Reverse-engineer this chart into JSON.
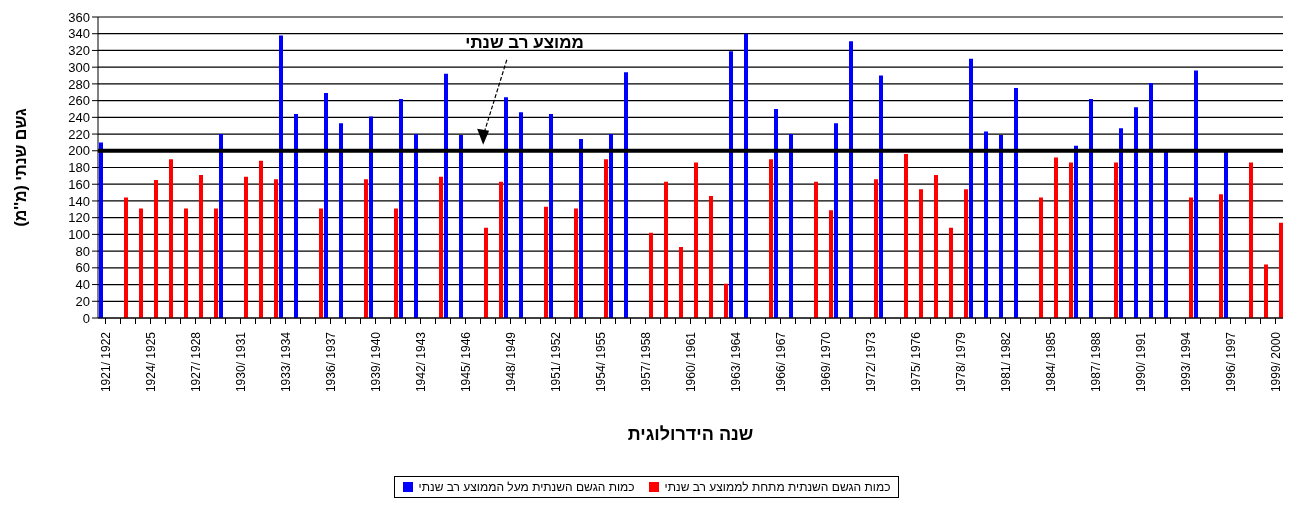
{
  "chart_data": {
    "type": "bar",
    "xlabel": "שנה הידרולוגית",
    "ylabel": "גשם שנתי (מ''מ)",
    "categories": [
      "1921/ 1922",
      null,
      null,
      "1924/ 1925",
      null,
      null,
      "1927/ 1928",
      null,
      null,
      "1930/ 1931",
      null,
      null,
      "1933/ 1934",
      null,
      null,
      "1936/ 1937",
      null,
      null,
      "1939/ 1940",
      null,
      null,
      "1942/ 1943",
      null,
      null,
      "1945/ 1946",
      null,
      null,
      "1948/ 1949",
      null,
      null,
      "1951/ 1952",
      null,
      null,
      "1954/ 1955",
      null,
      null,
      "1957/ 1958",
      null,
      null,
      "1960/ 1961",
      null,
      null,
      "1963/ 1964",
      null,
      null,
      "1966/ 1967",
      null,
      null,
      "1969/ 1970",
      null,
      null,
      "1972/ 1973",
      null,
      null,
      "1975/ 1976",
      null,
      null,
      "1978/ 1979",
      null,
      null,
      "1981/ 1982",
      null,
      null,
      "1984/ 1985",
      null,
      null,
      "1987/ 1988",
      null,
      null,
      "1990/ 1991",
      null,
      null,
      "1993/ 1994",
      null,
      null,
      "1996/ 1997",
      null,
      null,
      "1999/ 2000"
    ],
    "series": [
      {
        "name": "כמות הגשם השנתית מעל הממוצע רב שנתי",
        "color": "#0000ff",
        "values": [
          210,
          null,
          null,
          null,
          null,
          null,
          null,
          null,
          220,
          null,
          null,
          null,
          338,
          244,
          null,
          269,
          233,
          null,
          241,
          null,
          262,
          220,
          null,
          292,
          219,
          null,
          null,
          264,
          246,
          null,
          244,
          null,
          214,
          null,
          220,
          294,
          null,
          null,
          null,
          null,
          null,
          null,
          319,
          340,
          null,
          250,
          220,
          null,
          null,
          233,
          331,
          null,
          290,
          null,
          null,
          null,
          null,
          null,
          310,
          223,
          219,
          275,
          null,
          null,
          null,
          206,
          262,
          null,
          227,
          252,
          281,
          199,
          null,
          296,
          null,
          199,
          null,
          null,
          null
        ]
      },
      {
        "name": "כמות הגשם השנתית מתחת לממוצע רב שנתי",
        "color": "#ff0000",
        "values": [
          null,
          144,
          131,
          165,
          190,
          131,
          171,
          131,
          null,
          169,
          188,
          166,
          null,
          null,
          131,
          null,
          null,
          166,
          null,
          131,
          null,
          null,
          169,
          null,
          null,
          108,
          163,
          null,
          null,
          133,
          null,
          131,
          null,
          190,
          null,
          null,
          102,
          163,
          85,
          186,
          146,
          41,
          null,
          null,
          190,
          null,
          null,
          163,
          129,
          null,
          null,
          166,
          null,
          196,
          154,
          171,
          108,
          154,
          null,
          null,
          null,
          null,
          144,
          192,
          186,
          null,
          null,
          186,
          null,
          null,
          null,
          null,
          144,
          null,
          148,
          null,
          186,
          64,
          114
        ]
      }
    ],
    "ylim": [
      0,
      360
    ],
    "yticks": [
      0,
      20,
      40,
      60,
      80,
      100,
      120,
      140,
      160,
      180,
      200,
      220,
      240,
      260,
      280,
      300,
      320,
      340,
      360
    ],
    "grid": "y",
    "legend": "bottom",
    "annotations": [
      "ממוצע רב שנתי"
    ],
    "ref_lines": [
      {
        "axis": "y",
        "value": 200,
        "color": "#000000"
      }
    ]
  }
}
